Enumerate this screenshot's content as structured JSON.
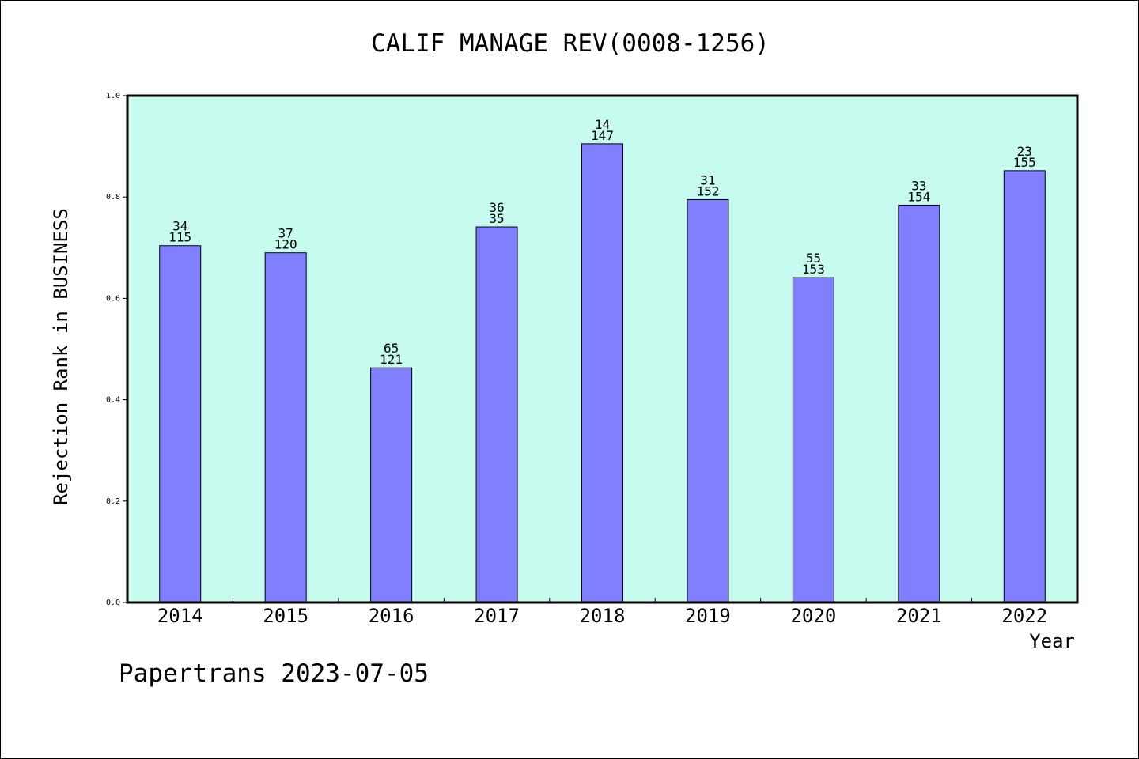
{
  "chart_data": {
    "type": "bar",
    "title": "CALIF MANAGE REV(0008-1256)",
    "xlabel": "Year",
    "ylabel": "Rejection Rank in BUSINESS",
    "ylim": [
      0,
      1.0
    ],
    "yticks": [
      "0.0",
      "0.2",
      "0.4",
      "0.6",
      "0.8",
      "1.0"
    ],
    "categories": [
      "2014",
      "2015",
      "2016",
      "2017",
      "2018",
      "2019",
      "2020",
      "2021",
      "2022"
    ],
    "values": [
      0.704,
      0.69,
      0.463,
      0.741,
      0.905,
      0.795,
      0.641,
      0.784,
      0.852
    ],
    "labels_top": [
      "34",
      "37",
      "65",
      "36",
      "14",
      "31",
      "55",
      "33",
      "23"
    ],
    "labels_bottom": [
      "115",
      "120",
      "121",
      "35",
      "147",
      "152",
      "153",
      "154",
      "155"
    ],
    "colors": {
      "plot_background": "#c8fbef",
      "bar_fill": "#8080ff",
      "bar_stroke": "#000000"
    },
    "grid": false,
    "legend": "none"
  },
  "footer": {
    "text": "Papertrans 2023-07-05"
  }
}
